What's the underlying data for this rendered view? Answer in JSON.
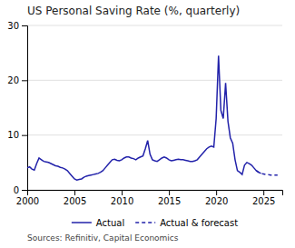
{
  "chart_data": {
    "type": "line",
    "title": "US Personal Saving Rate (%, quarterly)",
    "annotations": [
      "Sources: Refinitiv, Capital Economics"
    ],
    "xlim": [
      2000,
      2027
    ],
    "ylim": [
      0,
      30
    ],
    "xticks": [
      2000,
      2005,
      2010,
      2015,
      2020,
      2025
    ],
    "yticks": [
      0,
      10,
      20,
      30
    ],
    "grid": true,
    "legend": "bottom",
    "series": [
      {
        "name": "Actual",
        "color": "#2222AA",
        "line_style": "solid",
        "x": [
          2000.0,
          2000.25,
          2000.5,
          2000.75,
          2001.0,
          2001.25,
          2001.5,
          2001.75,
          2002.0,
          2002.25,
          2002.5,
          2002.75,
          2003.0,
          2003.25,
          2003.5,
          2003.75,
          2004.0,
          2004.25,
          2004.5,
          2004.75,
          2005.0,
          2005.25,
          2005.5,
          2005.75,
          2006.0,
          2006.25,
          2006.5,
          2006.75,
          2007.0,
          2007.25,
          2007.5,
          2007.75,
          2008.0,
          2008.25,
          2008.5,
          2008.75,
          2009.0,
          2009.25,
          2009.5,
          2009.75,
          2010.0,
          2010.25,
          2010.5,
          2010.75,
          2011.0,
          2011.25,
          2011.5,
          2011.75,
          2012.0,
          2012.25,
          2012.5,
          2012.75,
          2013.0,
          2013.25,
          2013.5,
          2013.75,
          2014.0,
          2014.25,
          2014.5,
          2014.75,
          2015.0,
          2015.25,
          2015.5,
          2015.75,
          2016.0,
          2016.25,
          2016.5,
          2016.75,
          2017.0,
          2017.25,
          2017.5,
          2017.75,
          2018.0,
          2018.25,
          2018.5,
          2018.75,
          2019.0,
          2019.25,
          2019.5,
          2019.75,
          2020.0,
          2020.25,
          2020.5,
          2020.75,
          2021.0,
          2021.25,
          2021.5,
          2021.75,
          2022.0,
          2022.25,
          2022.5,
          2022.75,
          2023.0,
          2023.25,
          2023.5,
          2023.75,
          2024.0,
          2024.25,
          2024.5,
          2024.75
        ],
        "values": [
          4.0,
          4.2,
          3.8,
          3.6,
          4.8,
          5.8,
          5.5,
          5.2,
          5.1,
          5.0,
          4.8,
          4.6,
          4.4,
          4.3,
          4.1,
          4.0,
          3.8,
          3.5,
          3.0,
          2.5,
          2.0,
          1.8,
          1.9,
          2.0,
          2.3,
          2.5,
          2.6,
          2.7,
          2.8,
          2.9,
          3.0,
          3.2,
          3.5,
          4.0,
          4.5,
          5.0,
          5.5,
          5.6,
          5.4,
          5.3,
          5.5,
          5.8,
          6.0,
          6.0,
          5.8,
          5.7,
          5.5,
          5.8,
          6.0,
          6.2,
          7.5,
          9.0,
          6.5,
          5.5,
          5.3,
          5.2,
          5.5,
          5.8,
          6.0,
          5.8,
          5.5,
          5.3,
          5.4,
          5.5,
          5.6,
          5.5,
          5.5,
          5.4,
          5.3,
          5.2,
          5.2,
          5.3,
          5.5,
          6.0,
          6.5,
          7.0,
          7.5,
          7.8,
          8.0,
          7.8,
          13.0,
          24.5,
          14.5,
          13.0,
          19.5,
          12.5,
          9.5,
          8.5,
          5.5,
          3.5,
          3.2,
          2.8,
          4.5,
          5.0,
          4.8,
          4.5,
          4.0,
          3.5,
          3.2,
          3.0
        ]
      },
      {
        "name": "Actual & forecast",
        "color": "#2222AA",
        "line_style": "dashed",
        "x": [
          2024.25,
          2024.5,
          2024.75,
          2025.0,
          2025.25,
          2025.5,
          2025.75,
          2026.0,
          2026.25,
          2026.5
        ],
        "values": [
          3.5,
          3.2,
          3.0,
          2.9,
          2.8,
          2.8,
          2.7,
          2.7,
          2.7,
          2.7
        ]
      }
    ]
  }
}
